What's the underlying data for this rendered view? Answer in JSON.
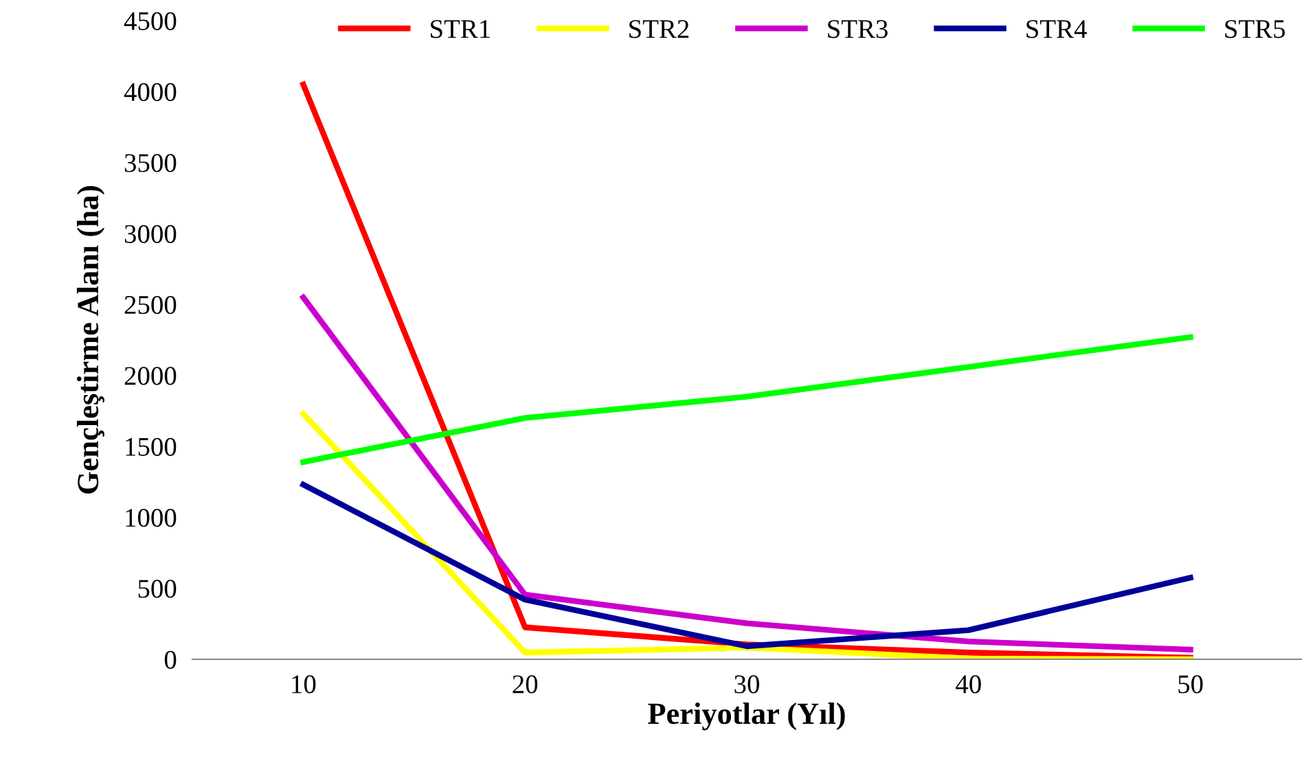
{
  "chart_data": {
    "type": "line",
    "xlabel": "Periyotlar (Yıl)",
    "ylabel": "Gençleştirme Alanı (ha)",
    "categories": [
      "10",
      "20",
      "30",
      "40",
      "50"
    ],
    "series": [
      {
        "name": "STR1",
        "color": "#ff0000",
        "values": [
          4050,
          225,
          105,
          47,
          10
        ]
      },
      {
        "name": "STR2",
        "color": "#ffff00",
        "values": [
          1730,
          47,
          82,
          5,
          0
        ]
      },
      {
        "name": "STR3",
        "color": "#cc00cc",
        "values": [
          2550,
          455,
          253,
          125,
          68
        ]
      },
      {
        "name": "STR4",
        "color": "#000099",
        "values": [
          1230,
          420,
          92,
          205,
          575
        ]
      },
      {
        "name": "STR5",
        "color": "#00ff00",
        "values": [
          1390,
          1700,
          1850,
          2060,
          2270
        ]
      }
    ],
    "ylim": [
      0,
      4500
    ],
    "yticks": [
      0,
      500,
      1000,
      1500,
      2000,
      2500,
      3000,
      3500,
      4000,
      4500
    ],
    "grid": false,
    "legend": "top",
    "marker": "none",
    "line_style": "solid"
  }
}
